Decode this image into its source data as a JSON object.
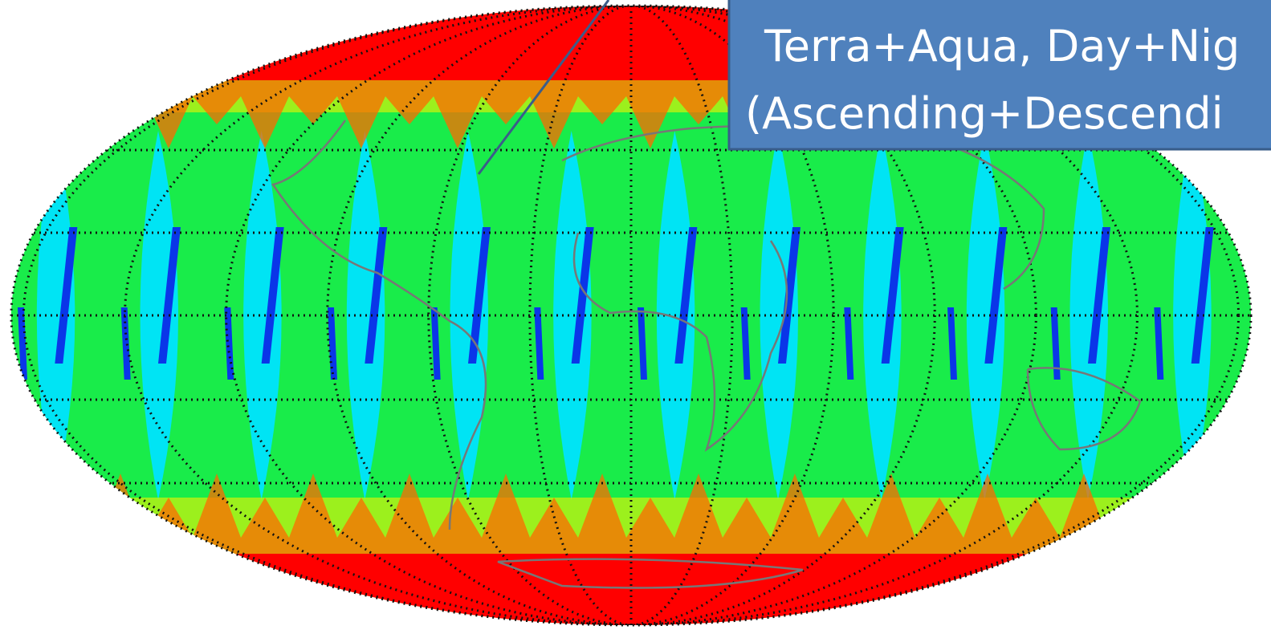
{
  "callout": {
    "lines": [
      "Terra+Aqua, Day+Nig",
      "(Ascending+Descendi"
    ]
  }
}
